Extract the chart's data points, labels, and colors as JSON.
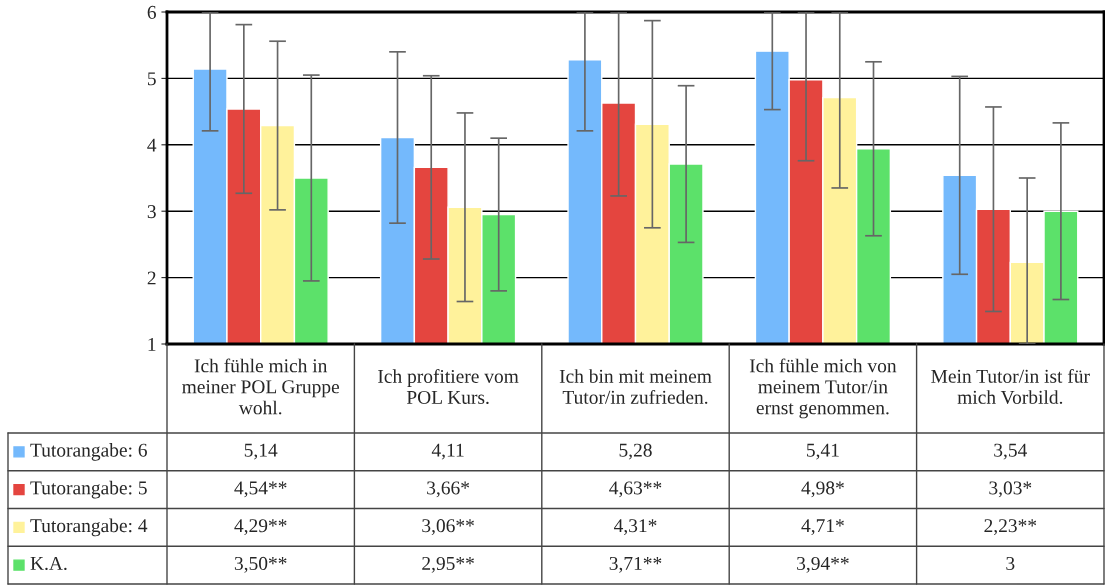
{
  "chart_data": {
    "type": "bar",
    "categories": [
      "Ich fühle mich in\nmeiner POL Gruppe\nwohl.",
      "Ich profitiere vom\nPOL Kurs.",
      "Ich bin mit meinem\nTutor/in zufrieden.",
      "Ich fühle mich von\nmeinem Tutor/in\nernst genommen.",
      "Mein Tutor/in ist für\nmich Vorbild."
    ],
    "series": [
      {
        "name": "Tutorangabe: 6",
        "color": "#74b9fc",
        "values": [
          5.14,
          4.11,
          5.28,
          5.41,
          3.54
        ],
        "value_labels": [
          "5,14",
          "4,11",
          "5,28",
          "5,41",
          "3,54"
        ],
        "errors": [
          [
            4.21,
            6
          ],
          1.29,
          [
            4.21,
            6
          ],
          [
            4.53,
            6
          ],
          1.49
        ]
      },
      {
        "name": "Tutorangabe: 5",
        "color": "#e4453f",
        "values": [
          4.54,
          3.66,
          4.63,
          4.98,
          3.03
        ],
        "value_labels": [
          "4,54**",
          "3,66*",
          "4,63**",
          "4,98*",
          "3,03*"
        ],
        "errors": [
          1.27,
          1.38,
          [
            3.23,
            6
          ],
          [
            3.76,
            6
          ],
          1.54
        ]
      },
      {
        "name": "Tutorangabe: 4",
        "color": "#fff29b",
        "values": [
          4.29,
          3.06,
          4.31,
          4.71,
          2.23
        ],
        "value_labels": [
          "4,29**",
          "3,06**",
          "4,31*",
          "4,71*",
          "2,23**"
        ],
        "errors": [
          1.27,
          1.42,
          1.56,
          [
            3.35,
            6
          ],
          [
            1,
            3.5
          ]
        ]
      },
      {
        "name": "K.A.",
        "color": "#5ce16a",
        "values": [
          3.5,
          2.95,
          3.71,
          3.94,
          3.0
        ],
        "value_labels": [
          "3,50**",
          "2,95**",
          "3,71**",
          "3,94**",
          "3"
        ],
        "errors": [
          1.55,
          1.15,
          1.18,
          1.31,
          1.33
        ]
      }
    ],
    "ylim": [
      1,
      6
    ],
    "yticks": [
      1,
      2,
      3,
      4,
      5,
      6
    ],
    "grid": "y",
    "legend": "bottom"
  }
}
